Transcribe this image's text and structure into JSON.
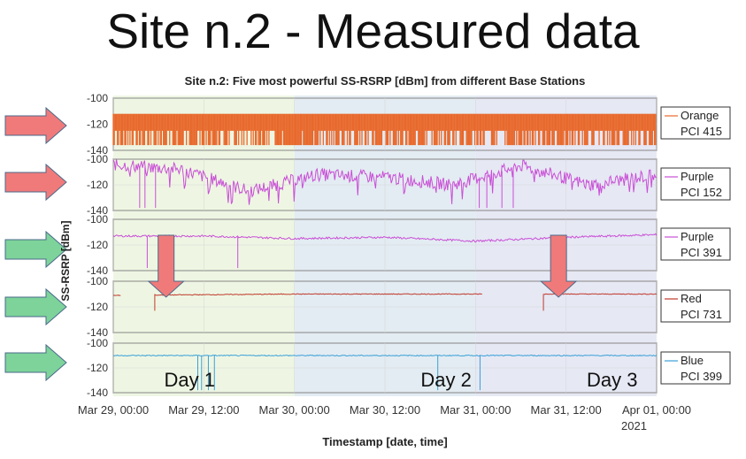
{
  "slide_title": "Site n.2 - Measured data",
  "colors": {
    "orange": "#e8692c",
    "purple": "#c94fd6",
    "red": "#c0392b",
    "blue": "#3aa0d8",
    "day1_bg": "#eef6e3",
    "day2_bg": "#e3ecf2",
    "day3_bg": "#e6e8f4",
    "arrow_red": "#f07a7a",
    "arrow_green": "#7dd39a"
  },
  "chart_data": {
    "type": "line",
    "title": "Site n.2: Five most powerful SS-RSRP [dBm] from different Base Stations",
    "xlabel": "Timestamp [date, time]",
    "ylabel": "SS-RSRP [dBm]",
    "x_ticks": [
      "Mar 29, 00:00",
      "Mar 29, 12:00",
      "Mar 30, 00:00",
      "Mar 30, 12:00",
      "Mar 31, 00:00",
      "Mar 31, 12:00",
      "Apr 01, 00:00"
    ],
    "x_year_label": "2021",
    "x_range_hours": [
      0,
      72
    ],
    "ylim": [
      -140,
      -100
    ],
    "y_ticks": [
      -100,
      -120,
      -140
    ],
    "day_labels": [
      "Day 1",
      "Day 2",
      "Day 3"
    ],
    "series": [
      {
        "legend": [
          "Orange",
          "PCI 415"
        ],
        "color": "orange",
        "levels": [
          -112,
          -125,
          -136
        ],
        "pattern": "band"
      },
      {
        "legend": [
          "Purple",
          "PCI 152"
        ],
        "color": "purple",
        "typical": [
          -104,
          -108,
          -125,
          -112,
          -114,
          -120,
          -105,
          -120,
          -112
        ],
        "pattern": "wave"
      },
      {
        "legend": [
          "Purple",
          "PCI 391"
        ],
        "color": "purple",
        "typical": [
          -113,
          -113,
          -115,
          -114,
          -117,
          -114,
          -112
        ],
        "pattern": "flat"
      },
      {
        "legend": [
          "Red",
          "PCI 731"
        ],
        "color": "red",
        "typical": [
          -111,
          -110,
          -110,
          -110
        ],
        "pattern": "step",
        "gaps_hours": [
          [
            1,
            5.5
          ],
          [
            49,
            57
          ]
        ]
      },
      {
        "legend": [
          "Blue",
          "PCI 399"
        ],
        "color": "blue",
        "typical": [
          -110,
          -110,
          -110,
          -110
        ],
        "pattern": "flat_spikes"
      }
    ]
  }
}
